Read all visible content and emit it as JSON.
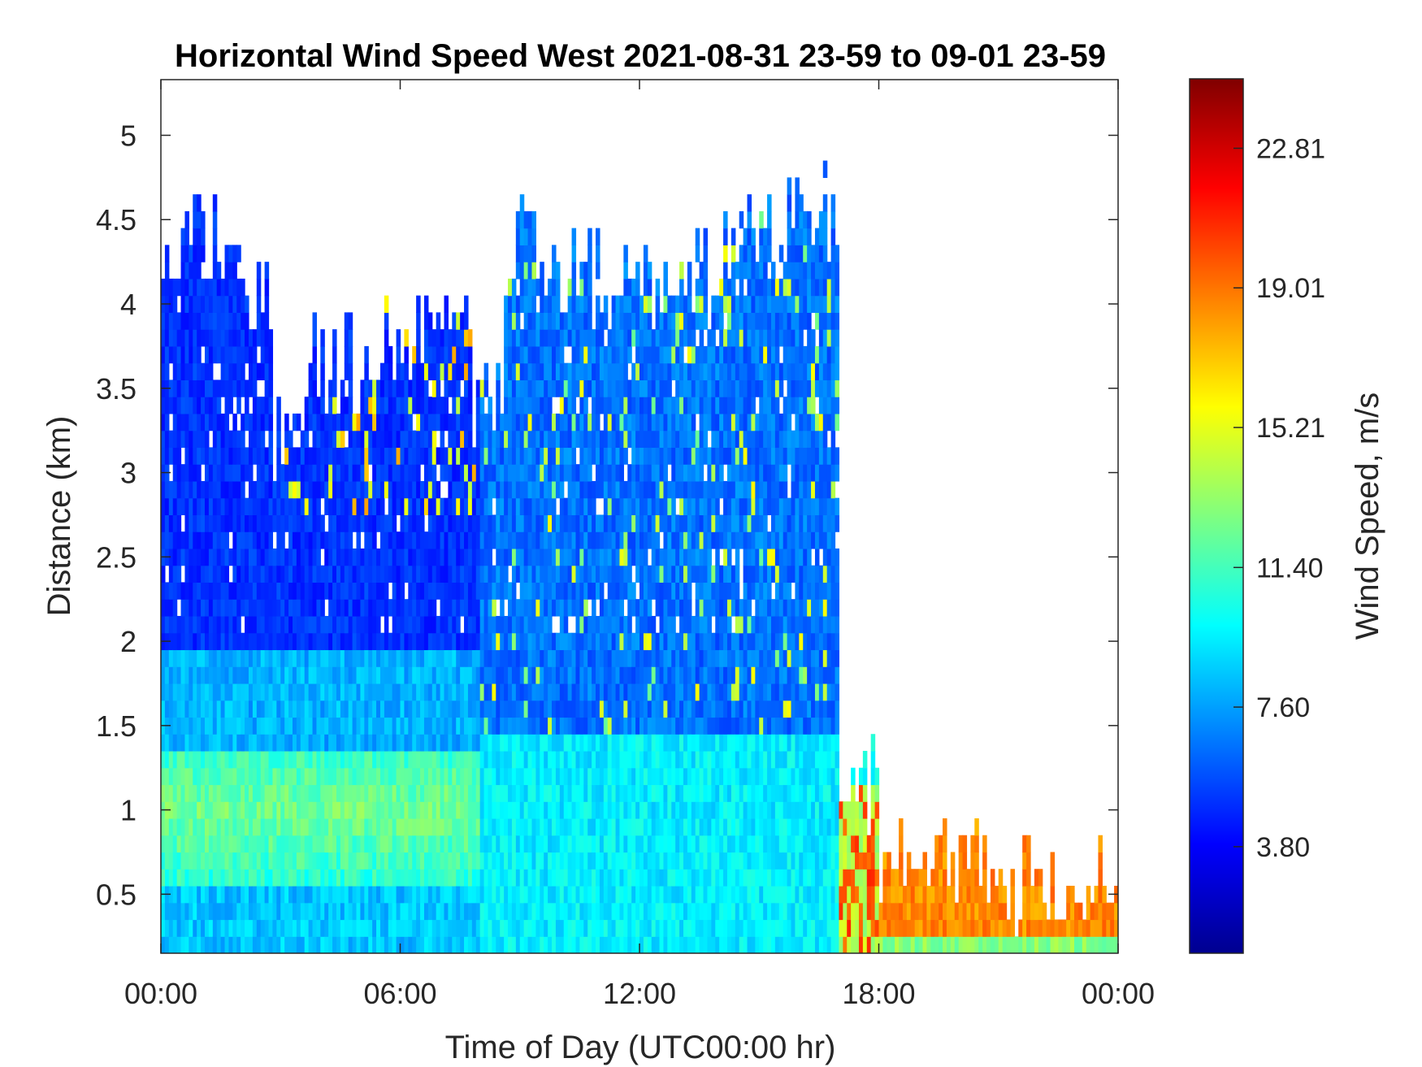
{
  "chart_data": {
    "type": "heatmap",
    "title": "Horizontal Wind Speed West 2021-08-31 23-59 to 09-01 23-59",
    "xlabel": "Time of Day (UTC00:00 hr)",
    "ylabel": "Distance (km)",
    "xticks": [
      "00:00",
      "06:00",
      "12:00",
      "18:00",
      "00:00"
    ],
    "xlim_hours": [
      0,
      24
    ],
    "yticks": [
      "0.5",
      "1",
      "1.5",
      "2",
      "2.5",
      "3",
      "3.5",
      "4",
      "4.5",
      "5"
    ],
    "ylim_km": [
      0.15,
      5.33
    ],
    "colorbar": {
      "label": "Wind Speed, m/s",
      "ticks": [
        "3.80",
        "7.60",
        "11.40",
        "15.21",
        "19.01",
        "22.81"
      ],
      "range": [
        0.9,
        24.7
      ],
      "colormap": "jet"
    },
    "grid": false,
    "max_height_km_by_hour": [
      {
        "start": 0,
        "end": 2.0,
        "top": 4.35
      },
      {
        "start": 2.0,
        "end": 2.8,
        "top": 4.05
      },
      {
        "start": 2.8,
        "end": 3.6,
        "top": 3.2
      },
      {
        "start": 3.6,
        "end": 5.5,
        "top": 3.6
      },
      {
        "start": 5.5,
        "end": 7.8,
        "top": 3.75
      },
      {
        "start": 7.8,
        "end": 8.6,
        "top": 3.3
      },
      {
        "start": 8.6,
        "end": 10.0,
        "top": 4.3
      },
      {
        "start": 10.0,
        "end": 14.0,
        "top": 4.1
      },
      {
        "start": 14.0,
        "end": 16.0,
        "top": 4.4
      },
      {
        "start": 16.0,
        "end": 17.0,
        "top": 4.5
      },
      {
        "start": 17.0,
        "end": 18.0,
        "top": 1.1
      },
      {
        "start": 18.0,
        "end": 21.0,
        "top": 0.65
      },
      {
        "start": 21.0,
        "end": 24.0,
        "top": 0.5
      }
    ],
    "representative_speed_ms": {
      "00-08h": {
        "below_0.6km": 8.5,
        "0.6_1.4km": 12.5,
        "1.4_2.0km": 8.0,
        "2.0_4.4km": 5.0
      },
      "08-17h": {
        "below_1.5km": 9.5,
        "1.5_4.5km": 6.5
      },
      "17-18h": {
        "0.3_1.1km": 20.0
      },
      "18-24h": {
        "below_0.3km": 13.0,
        "0.3_0.5km": 19.0
      }
    }
  }
}
